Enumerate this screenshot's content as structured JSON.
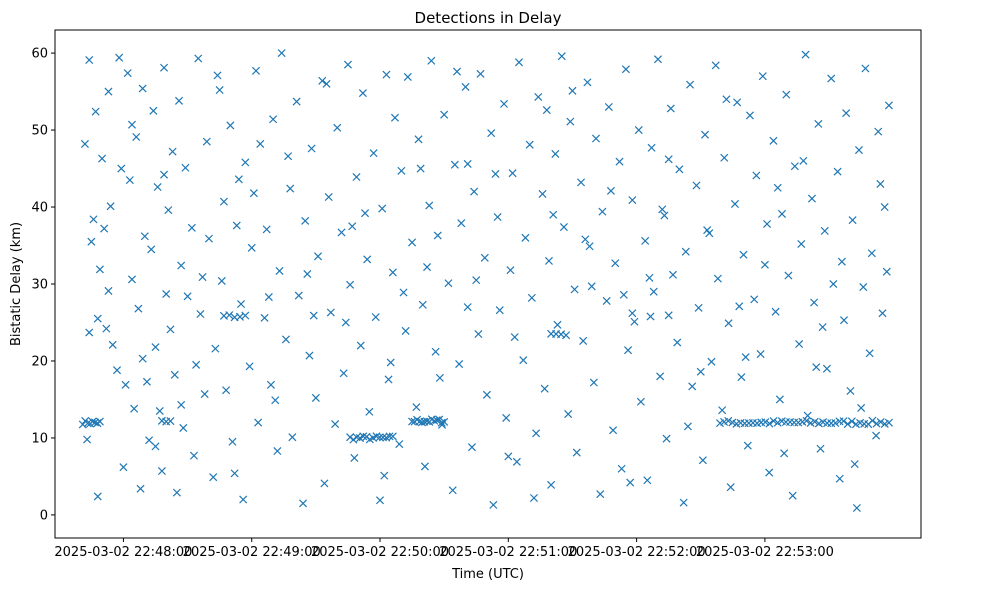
{
  "chart_data": {
    "type": "scatter",
    "title": "Detections in Delay",
    "xlabel": "Time (UTC)",
    "ylabel": "Bistatic Delay (km)",
    "marker": "x",
    "color": "#1f77b4",
    "x_unit": "seconds after 2025-03-02 22:48:00",
    "xlim": [
      -32,
      373
    ],
    "ylim": [
      -3,
      63
    ],
    "grid": false,
    "xticks": [
      {
        "value": 0,
        "label": "2025-03-02 22:48:00"
      },
      {
        "value": 60,
        "label": "2025-03-02 22:49:00"
      },
      {
        "value": 120,
        "label": "2025-03-02 22:50:00"
      },
      {
        "value": 180,
        "label": "2025-03-02 22:51:00"
      },
      {
        "value": 240,
        "label": "2025-03-02 22:52:00"
      },
      {
        "value": 300,
        "label": "2025-03-02 22:53:00"
      }
    ],
    "yticks": [
      {
        "value": 0,
        "label": "0"
      },
      {
        "value": 10,
        "label": "10"
      },
      {
        "value": 20,
        "label": "20"
      },
      {
        "value": 30,
        "label": "30"
      },
      {
        "value": 40,
        "label": "40"
      },
      {
        "value": 50,
        "label": "50"
      },
      {
        "value": 60,
        "label": "60"
      }
    ],
    "x_range_seconds": [
      -19,
      359
    ],
    "point_count_approx": 800,
    "clusters": [
      {
        "x_start": -19,
        "x_end": -11,
        "y": 12.0,
        "count": 8
      },
      {
        "x_start": 18,
        "x_end": 22,
        "y": 12.1,
        "count": 3
      },
      {
        "x_start": 47,
        "x_end": 57,
        "y": 25.8,
        "count": 5
      },
      {
        "x_start": 106,
        "x_end": 126,
        "y": 10.0,
        "count": 14
      },
      {
        "x_start": 135,
        "x_end": 150,
        "y": 12.2,
        "count": 14
      },
      {
        "x_start": 200,
        "x_end": 207,
        "y": 23.5,
        "count": 4
      },
      {
        "x_start": 238,
        "x_end": 255,
        "y": 26.0,
        "count": 3
      },
      {
        "x_start": 279,
        "x_end": 358,
        "y": 12.0,
        "count": 42
      }
    ],
    "scatter_points": [
      [
        -18,
        48.2
      ],
      [
        -16,
        59.1
      ],
      [
        -14,
        38.4
      ],
      [
        -16,
        23.7
      ],
      [
        -12,
        2.4
      ],
      [
        -11,
        31.9
      ],
      [
        -12,
        25.5
      ],
      [
        -10,
        46.3
      ],
      [
        -9,
        37.2
      ],
      [
        -8,
        24.2
      ],
      [
        -7,
        55.0
      ],
      [
        -6,
        40.1
      ],
      [
        -5,
        22.1
      ],
      [
        -3,
        18.8
      ],
      [
        -2,
        59.4
      ],
      [
        -1,
        45.0
      ],
      [
        1,
        16.9
      ],
      [
        2,
        57.4
      ],
      [
        3,
        43.5
      ],
      [
        4,
        30.6
      ],
      [
        5,
        13.8
      ],
      [
        6,
        49.1
      ],
      [
        7,
        26.8
      ],
      [
        8,
        3.4
      ],
      [
        9,
        55.4
      ],
      [
        10,
        36.2
      ],
      [
        11,
        17.3
      ],
      [
        12,
        9.7
      ],
      [
        13,
        34.5
      ],
      [
        14,
        52.5
      ],
      [
        15,
        21.8
      ],
      [
        16,
        42.6
      ],
      [
        17,
        13.5
      ],
      [
        18,
        5.7
      ],
      [
        19,
        58.1
      ],
      [
        20,
        28.7
      ],
      [
        21,
        39.6
      ],
      [
        22,
        24.1
      ],
      [
        23,
        47.2
      ],
      [
        24,
        18.2
      ],
      [
        25,
        2.9
      ],
      [
        26,
        53.8
      ],
      [
        27,
        32.4
      ],
      [
        28,
        11.3
      ],
      [
        29,
        45.1
      ],
      [
        30,
        28.4
      ],
      [
        32,
        37.3
      ],
      [
        33,
        7.7
      ],
      [
        35,
        59.3
      ],
      [
        36,
        26.1
      ],
      [
        38,
        15.7
      ],
      [
        39,
        48.5
      ],
      [
        40,
        35.9
      ],
      [
        42,
        4.9
      ],
      [
        43,
        21.6
      ],
      [
        45,
        55.2
      ],
      [
        46,
        30.4
      ],
      [
        47,
        40.7
      ],
      [
        48,
        16.2
      ],
      [
        50,
        50.6
      ],
      [
        51,
        9.5
      ],
      [
        53,
        37.6
      ],
      [
        55,
        27.4
      ],
      [
        56,
        2.0
      ],
      [
        57,
        45.8
      ],
      [
        59,
        19.3
      ],
      [
        60,
        34.7
      ],
      [
        62,
        57.7
      ],
      [
        63,
        12.0
      ],
      [
        64,
        48.2
      ],
      [
        66,
        25.6
      ],
      [
        67,
        37.1
      ],
      [
        69,
        16.9
      ],
      [
        70,
        51.4
      ],
      [
        72,
        8.3
      ],
      [
        73,
        31.7
      ],
      [
        74,
        60.0
      ],
      [
        76,
        22.8
      ],
      [
        78,
        42.4
      ],
      [
        79,
        10.1
      ],
      [
        81,
        53.7
      ],
      [
        82,
        28.5
      ],
      [
        84,
        1.5
      ],
      [
        85,
        38.2
      ],
      [
        87,
        20.7
      ],
      [
        88,
        47.6
      ],
      [
        90,
        15.2
      ],
      [
        91,
        33.6
      ],
      [
        93,
        56.4
      ],
      [
        94,
        4.1
      ],
      [
        96,
        41.3
      ],
      [
        97,
        26.3
      ],
      [
        99,
        11.8
      ],
      [
        100,
        50.3
      ],
      [
        102,
        36.7
      ],
      [
        103,
        18.4
      ],
      [
        105,
        58.5
      ],
      [
        106,
        29.9
      ],
      [
        108,
        7.4
      ],
      [
        109,
        43.9
      ],
      [
        111,
        22.0
      ],
      [
        112,
        54.8
      ],
      [
        114,
        33.2
      ],
      [
        115,
        13.4
      ],
      [
        117,
        47.0
      ],
      [
        118,
        25.7
      ],
      [
        120,
        1.9
      ],
      [
        121,
        39.8
      ],
      [
        123,
        57.2
      ],
      [
        124,
        17.6
      ],
      [
        126,
        31.5
      ],
      [
        127,
        51.6
      ],
      [
        129,
        9.2
      ],
      [
        130,
        44.7
      ],
      [
        132,
        23.9
      ],
      [
        133,
        56.9
      ],
      [
        135,
        35.4
      ],
      [
        137,
        14.0
      ],
      [
        138,
        48.8
      ],
      [
        140,
        27.3
      ],
      [
        141,
        6.3
      ],
      [
        143,
        40.2
      ],
      [
        144,
        59.0
      ],
      [
        146,
        21.2
      ],
      [
        147,
        36.3
      ],
      [
        149,
        11.7
      ],
      [
        150,
        52.0
      ],
      [
        152,
        30.1
      ],
      [
        154,
        3.2
      ],
      [
        155,
        45.5
      ],
      [
        157,
        19.6
      ],
      [
        158,
        37.9
      ],
      [
        160,
        55.6
      ],
      [
        161,
        27.0
      ],
      [
        163,
        8.8
      ],
      [
        164,
        42.0
      ],
      [
        166,
        23.5
      ],
      [
        167,
        57.3
      ],
      [
        169,
        33.4
      ],
      [
        170,
        15.6
      ],
      [
        172,
        49.6
      ],
      [
        173,
        1.3
      ],
      [
        175,
        38.7
      ],
      [
        176,
        26.6
      ],
      [
        178,
        53.4
      ],
      [
        179,
        12.6
      ],
      [
        181,
        31.8
      ],
      [
        182,
        44.4
      ],
      [
        184,
        6.9
      ],
      [
        185,
        58.8
      ],
      [
        187,
        20.1
      ],
      [
        188,
        36.0
      ],
      [
        190,
        48.1
      ],
      [
        191,
        28.2
      ],
      [
        193,
        10.6
      ],
      [
        194,
        54.3
      ],
      [
        196,
        41.7
      ],
      [
        197,
        16.4
      ],
      [
        199,
        33.0
      ],
      [
        200,
        3.9
      ],
      [
        202,
        46.9
      ],
      [
        203,
        24.7
      ],
      [
        205,
        59.6
      ],
      [
        206,
        37.4
      ],
      [
        208,
        13.1
      ],
      [
        209,
        51.1
      ],
      [
        211,
        29.3
      ],
      [
        212,
        8.1
      ],
      [
        214,
        43.2
      ],
      [
        215,
        22.6
      ],
      [
        217,
        56.2
      ],
      [
        218,
        34.9
      ],
      [
        220,
        17.2
      ],
      [
        221,
        48.9
      ],
      [
        223,
        2.7
      ],
      [
        224,
        39.4
      ],
      [
        226,
        27.8
      ],
      [
        227,
        53.0
      ],
      [
        229,
        11.0
      ],
      [
        230,
        32.7
      ],
      [
        232,
        45.9
      ],
      [
        233,
        6.0
      ],
      [
        235,
        57.9
      ],
      [
        236,
        21.4
      ],
      [
        238,
        40.9
      ],
      [
        239,
        25.1
      ],
      [
        241,
        50.0
      ],
      [
        242,
        14.7
      ],
      [
        244,
        35.6
      ],
      [
        245,
        4.5
      ],
      [
        247,
        47.7
      ],
      [
        248,
        29.0
      ],
      [
        250,
        59.2
      ],
      [
        251,
        18.0
      ],
      [
        253,
        38.9
      ],
      [
        254,
        9.9
      ],
      [
        256,
        52.8
      ],
      [
        257,
        31.2
      ],
      [
        259,
        22.4
      ],
      [
        260,
        44.9
      ],
      [
        262,
        1.6
      ],
      [
        263,
        34.2
      ],
      [
        265,
        55.9
      ],
      [
        266,
        16.7
      ],
      [
        268,
        42.8
      ],
      [
        269,
        26.9
      ],
      [
        271,
        7.1
      ],
      [
        272,
        49.4
      ],
      [
        274,
        36.6
      ],
      [
        275,
        19.9
      ],
      [
        277,
        58.4
      ],
      [
        278,
        30.7
      ],
      [
        280,
        13.6
      ],
      [
        281,
        46.4
      ],
      [
        283,
        24.9
      ],
      [
        284,
        3.6
      ],
      [
        286,
        40.4
      ],
      [
        287,
        53.6
      ],
      [
        289,
        17.9
      ],
      [
        290,
        33.8
      ],
      [
        292,
        9.0
      ],
      [
        293,
        51.9
      ],
      [
        295,
        28.0
      ],
      [
        296,
        44.1
      ],
      [
        298,
        20.9
      ],
      [
        299,
        57.0
      ],
      [
        301,
        37.8
      ],
      [
        302,
        5.5
      ],
      [
        304,
        48.6
      ],
      [
        305,
        26.4
      ],
      [
        307,
        15.0
      ],
      [
        308,
        39.1
      ],
      [
        310,
        54.6
      ],
      [
        311,
        31.1
      ],
      [
        313,
        2.5
      ],
      [
        314,
        45.3
      ],
      [
        316,
        22.2
      ],
      [
        317,
        35.2
      ],
      [
        319,
        59.8
      ],
      [
        320,
        12.9
      ],
      [
        322,
        41.1
      ],
      [
        323,
        27.6
      ],
      [
        325,
        50.8
      ],
      [
        326,
        8.6
      ],
      [
        328,
        36.9
      ],
      [
        329,
        19.0
      ],
      [
        331,
        56.7
      ],
      [
        332,
        30.0
      ],
      [
        334,
        44.6
      ],
      [
        335,
        4.7
      ],
      [
        337,
        25.3
      ],
      [
        338,
        52.2
      ],
      [
        340,
        16.1
      ],
      [
        341,
        38.3
      ],
      [
        343,
        0.9
      ],
      [
        344,
        47.4
      ],
      [
        346,
        29.6
      ],
      [
        347,
        58.0
      ],
      [
        349,
        21.0
      ],
      [
        350,
        34.0
      ],
      [
        352,
        10.3
      ],
      [
        353,
        49.8
      ],
      [
        355,
        26.2
      ],
      [
        356,
        40.0
      ],
      [
        358,
        53.2
      ],
      [
        -17,
        9.8
      ],
      [
        -13,
        52.4
      ],
      [
        -7,
        29.1
      ],
      [
        0,
        6.2
      ],
      [
        9,
        20.3
      ],
      [
        19,
        44.2
      ],
      [
        27,
        14.3
      ],
      [
        37,
        30.9
      ],
      [
        44,
        57.1
      ],
      [
        52,
        5.4
      ],
      [
        61,
        41.8
      ],
      [
        68,
        28.3
      ],
      [
        77,
        46.6
      ],
      [
        86,
        31.3
      ],
      [
        95,
        56.0
      ],
      [
        104,
        25.0
      ],
      [
        113,
        39.2
      ],
      [
        122,
        5.1
      ],
      [
        131,
        28.9
      ],
      [
        139,
        45.0
      ],
      [
        148,
        17.8
      ],
      [
        156,
        57.6
      ],
      [
        165,
        30.5
      ],
      [
        174,
        44.3
      ],
      [
        183,
        23.1
      ],
      [
        192,
        2.2
      ],
      [
        201,
        39.0
      ],
      [
        210,
        55.1
      ],
      [
        219,
        29.7
      ],
      [
        228,
        42.1
      ],
      [
        237,
        4.2
      ],
      [
        246,
        30.8
      ],
      [
        255,
        46.2
      ],
      [
        264,
        11.5
      ],
      [
        273,
        37.0
      ],
      [
        282,
        54.0
      ],
      [
        291,
        20.5
      ],
      [
        300,
        32.5
      ],
      [
        309,
        8.0
      ],
      [
        318,
        46.0
      ],
      [
        327,
        24.4
      ],
      [
        336,
        32.9
      ],
      [
        345,
        13.9
      ],
      [
        354,
        43.0
      ],
      [
        -15,
        35.5
      ],
      [
        4,
        50.7
      ],
      [
        15,
        8.9
      ],
      [
        34,
        19.5
      ],
      [
        54,
        43.6
      ],
      [
        71,
        14.9
      ],
      [
        89,
        25.9
      ],
      [
        107,
        37.5
      ],
      [
        125,
        19.8
      ],
      [
        142,
        32.2
      ],
      [
        161,
        45.6
      ],
      [
        180,
        7.6
      ],
      [
        198,
        52.6
      ],
      [
        216,
        35.8
      ],
      [
        234,
        28.6
      ],
      [
        252,
        39.7
      ],
      [
        270,
        18.6
      ],
      [
        288,
        27.1
      ],
      [
        306,
        42.5
      ],
      [
        324,
        19.2
      ],
      [
        342,
        6.6
      ],
      [
        357,
        31.6
      ]
    ]
  }
}
